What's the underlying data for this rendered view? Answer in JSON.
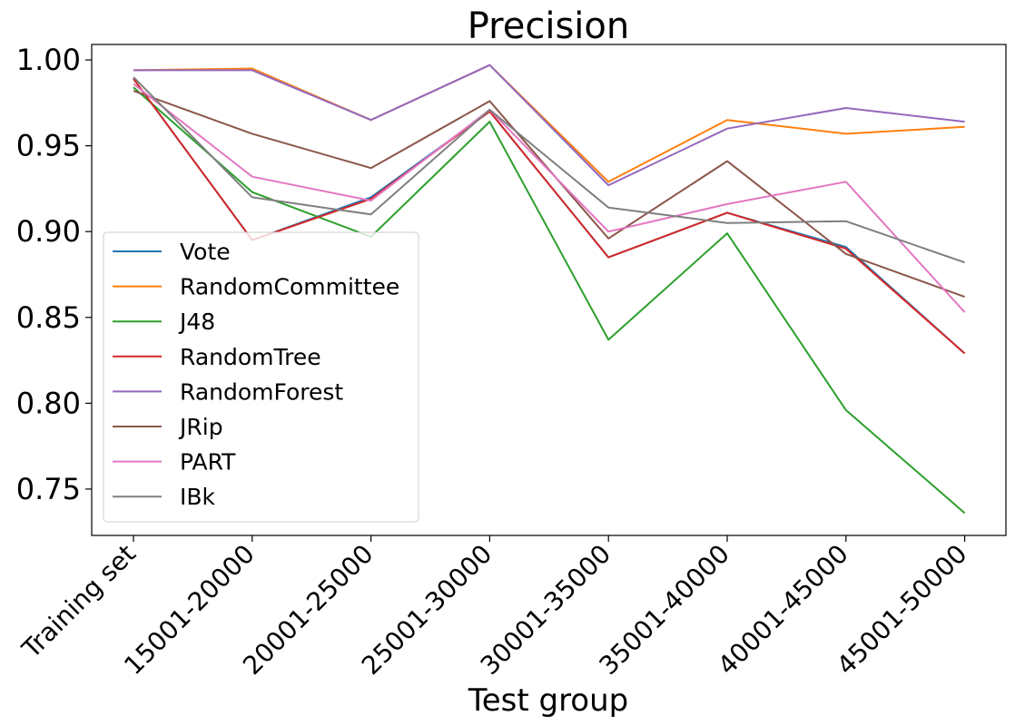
{
  "chart_data": {
    "type": "line",
    "title": "Precision",
    "xlabel": "Test group",
    "ylabel": "",
    "categories": [
      "Training set",
      "15001-20000",
      "20001-25000",
      "25001-30000",
      "30001-35000",
      "35001-40000",
      "40001-45000",
      "45001-50000"
    ],
    "ylim": [
      0.723,
      1.009
    ],
    "yticks": [
      "0.75",
      "0.80",
      "0.85",
      "0.90",
      "0.95",
      "1.00"
    ],
    "grid": false,
    "legend_position": "center-left",
    "series": [
      {
        "name": "Vote",
        "color": "#1f77b4",
        "values": [
          0.989,
          0.895,
          0.92,
          0.97,
          0.885,
          0.911,
          0.891,
          0.829
        ]
      },
      {
        "name": "RandomCommittee",
        "color": "#ff7f0e",
        "values": [
          0.994,
          0.995,
          0.965,
          0.997,
          0.929,
          0.965,
          0.957,
          0.961
        ]
      },
      {
        "name": "J48",
        "color": "#2ca02c",
        "values": [
          0.984,
          0.923,
          0.897,
          0.964,
          0.837,
          0.899,
          0.796,
          0.736
        ]
      },
      {
        "name": "RandomTree",
        "color": "#d62728",
        "values": [
          0.989,
          0.895,
          0.919,
          0.97,
          0.885,
          0.911,
          0.89,
          0.829
        ]
      },
      {
        "name": "RandomForest",
        "color": "#9467bd",
        "values": [
          0.994,
          0.994,
          0.965,
          0.997,
          0.927,
          0.96,
          0.972,
          0.964
        ]
      },
      {
        "name": "JRip",
        "color": "#8c564b",
        "values": [
          0.982,
          0.957,
          0.937,
          0.976,
          0.896,
          0.941,
          0.887,
          0.862
        ]
      },
      {
        "name": "PART",
        "color": "#e377c2",
        "values": [
          0.986,
          0.932,
          0.918,
          0.971,
          0.9,
          0.916,
          0.929,
          0.853
        ]
      },
      {
        "name": "IBk",
        "color": "#7f7f7f",
        "values": [
          0.99,
          0.92,
          0.91,
          0.971,
          0.914,
          0.905,
          0.906,
          0.882
        ]
      }
    ]
  }
}
